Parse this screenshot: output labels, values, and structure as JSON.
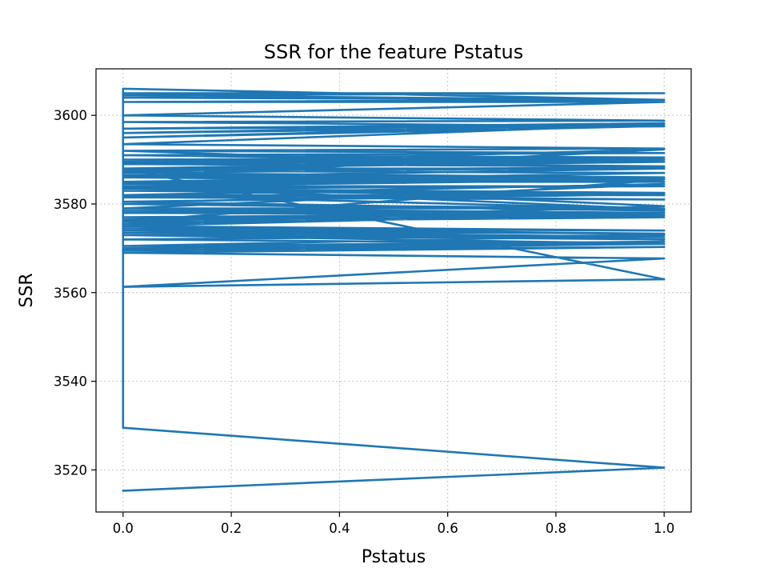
{
  "chart_data": {
    "type": "line",
    "title": "SSR for the feature Pstatus",
    "xlabel": "Pstatus",
    "ylabel": "SSR",
    "xlim": [
      -0.05,
      1.05
    ],
    "ylim": [
      3510.5,
      3610.5
    ],
    "xticks": [
      0.0,
      0.2,
      0.4,
      0.6,
      0.8,
      1.0
    ],
    "xtick_labels": [
      "0.0",
      "0.2",
      "0.4",
      "0.6",
      "0.8",
      "1.0"
    ],
    "yticks": [
      3520,
      3540,
      3560,
      3580,
      3600
    ],
    "ytick_labels": [
      "3520",
      "3540",
      "3560",
      "3580",
      "3600"
    ],
    "grid": true,
    "series": [
      {
        "color": "#1f77b4",
        "x": [
          0,
          1,
          0,
          0,
          0,
          1,
          0,
          1,
          0,
          1,
          0,
          1,
          0,
          1,
          0,
          1,
          0,
          1,
          0,
          1,
          0,
          1,
          0,
          1,
          0,
          1,
          0,
          1,
          0,
          1,
          0,
          1,
          0,
          1,
          0,
          1,
          0,
          1,
          0,
          1,
          0,
          1,
          0,
          1,
          0,
          1,
          0,
          1,
          0,
          1,
          0,
          1,
          0,
          1,
          0,
          1,
          0,
          1,
          0,
          1,
          0,
          1,
          0,
          1,
          0,
          1,
          0,
          1,
          0,
          1,
          0,
          1,
          0,
          1,
          0,
          1,
          0,
          1,
          0,
          1,
          0,
          1,
          0,
          1,
          0,
          1,
          0,
          1,
          0,
          1,
          0,
          1,
          0,
          1,
          0,
          1,
          0,
          1,
          0,
          1,
          0,
          1,
          0,
          1,
          0,
          1,
          0,
          1,
          0,
          1,
          0,
          1,
          0,
          1,
          0,
          1,
          0,
          0,
          1,
          0
        ],
        "y": [
          3515.3,
          3520.5,
          3529.5,
          3606,
          3605,
          3605,
          3604.5,
          3603.5,
          3603,
          3603,
          3600,
          3598.8,
          3598.5,
          3597.5,
          3597,
          3598.2,
          3596,
          3597.6,
          3595,
          3598,
          3593.5,
          3592.5,
          3592,
          3591.5,
          3591,
          3590.5,
          3590,
          3590,
          3589.5,
          3588.5,
          3589,
          3590,
          3588,
          3588,
          3587.5,
          3588.3,
          3587,
          3586,
          3586.5,
          3585.8,
          3586,
          3585,
          3585,
          3586,
          3584.5,
          3585.5,
          3584,
          3584,
          3583.5,
          3582.5,
          3583,
          3582,
          3582,
          3581,
          3581.5,
          3582.2,
          3580.5,
          3578.5,
          3580,
          3579,
          3579,
          3578,
          3578.5,
          3577.5,
          3578,
          3577.5,
          3577,
          3578,
          3576.5,
          3577,
          3576,
          3577.5,
          3575.5,
          3578,
          3575,
          3574,
          3574.5,
          3573.3,
          3574,
          3572.5,
          3573.5,
          3572,
          3573,
          3571,
          3572,
          3573,
          3570.5,
          3571.5,
          3570,
          3571,
          3569.5,
          3570.3,
          3569,
          3567.7,
          3561.3,
          3563,
          3588,
          3589.5,
          3591,
          3591.5,
          3592,
          3588,
          3586,
          3592.3,
          3589,
          3590.5,
          3587.5,
          3587,
          3585,
          3579.5,
          3576,
          3585.5,
          3584,
          3578.8,
          3582,
          3584.5,
          3579,
          3604,
          3603.5,
          3606
        ]
      }
    ]
  }
}
